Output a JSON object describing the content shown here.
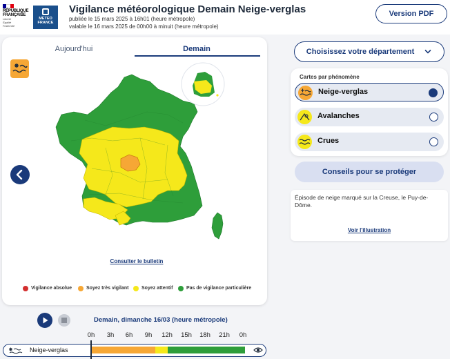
{
  "header": {
    "republique_line1": "RÉPUBLIQUE",
    "republique_line2": "FRANÇAISE",
    "motto1": "Liberté",
    "motto2": "Égalité",
    "motto3": "Fraternité",
    "meteo_line1": "METEO",
    "meteo_line2": "FRANCE",
    "title": "Vigilance météorologique Demain Neige-verglas",
    "published": "publiée le 15 mars 2025 à 16h01 (heure métropole)",
    "valid": "valable le 16 mars 2025 de 00h00 à minuit (heure métropole)",
    "pdf_button": "Version PDF"
  },
  "tabs": {
    "today": "Aujourd'hui",
    "tomorrow": "Demain",
    "active": "tomorrow"
  },
  "map": {
    "consult_link": "Consulter le bulletin",
    "phenomenon_icon": "snowflake-ice-icon"
  },
  "legend": [
    {
      "label": "Vigilance absolue",
      "color": "#d32f2f"
    },
    {
      "label": "Soyez très vigilant",
      "color": "#f6a735"
    },
    {
      "label": "Soyez attentif",
      "color": "#f5e81b"
    },
    {
      "label": "Pas de vigilance particulière",
      "color": "#2e9e3a"
    }
  ],
  "right": {
    "department_button": "Choisissez votre département",
    "phenomena_title": "Cartes par phénomène",
    "phenomena": [
      {
        "label": "Neige-verglas",
        "icon": "snowflake-ice-icon",
        "selected": true
      },
      {
        "label": "Avalanches",
        "icon": "avalanche-icon",
        "selected": false
      },
      {
        "label": "Crues",
        "icon": "waves-icon",
        "selected": false
      }
    ],
    "advice_button": "Conseils pour se protéger",
    "description": "Épisode de neige marqué sur la Creuse, le Puy-de-Dôme.",
    "illustration_link": "Voir l'illustration"
  },
  "timeline": {
    "date": "Demain, dimanche 16/03 (heure métropole)",
    "ticks": [
      "0h",
      "3h",
      "6h",
      "9h",
      "12h",
      "15h",
      "18h",
      "21h",
      "0h"
    ],
    "track_label": "Neige-verglas",
    "segments": [
      {
        "from_hour": 0,
        "to_hour": 10,
        "level": "Soyez très vigilant"
      },
      {
        "from_hour": 10,
        "to_hour": 12,
        "level": "Soyez attentif"
      },
      {
        "from_hour": 12,
        "to_hour": 24,
        "level": "Pas de vigilance particulière"
      }
    ]
  },
  "colors": {
    "accent": "#1a3a7a",
    "orange": "#f6a735",
    "yellow": "#f5e81b",
    "green": "#2e9e3a",
    "red": "#d32f2f"
  }
}
